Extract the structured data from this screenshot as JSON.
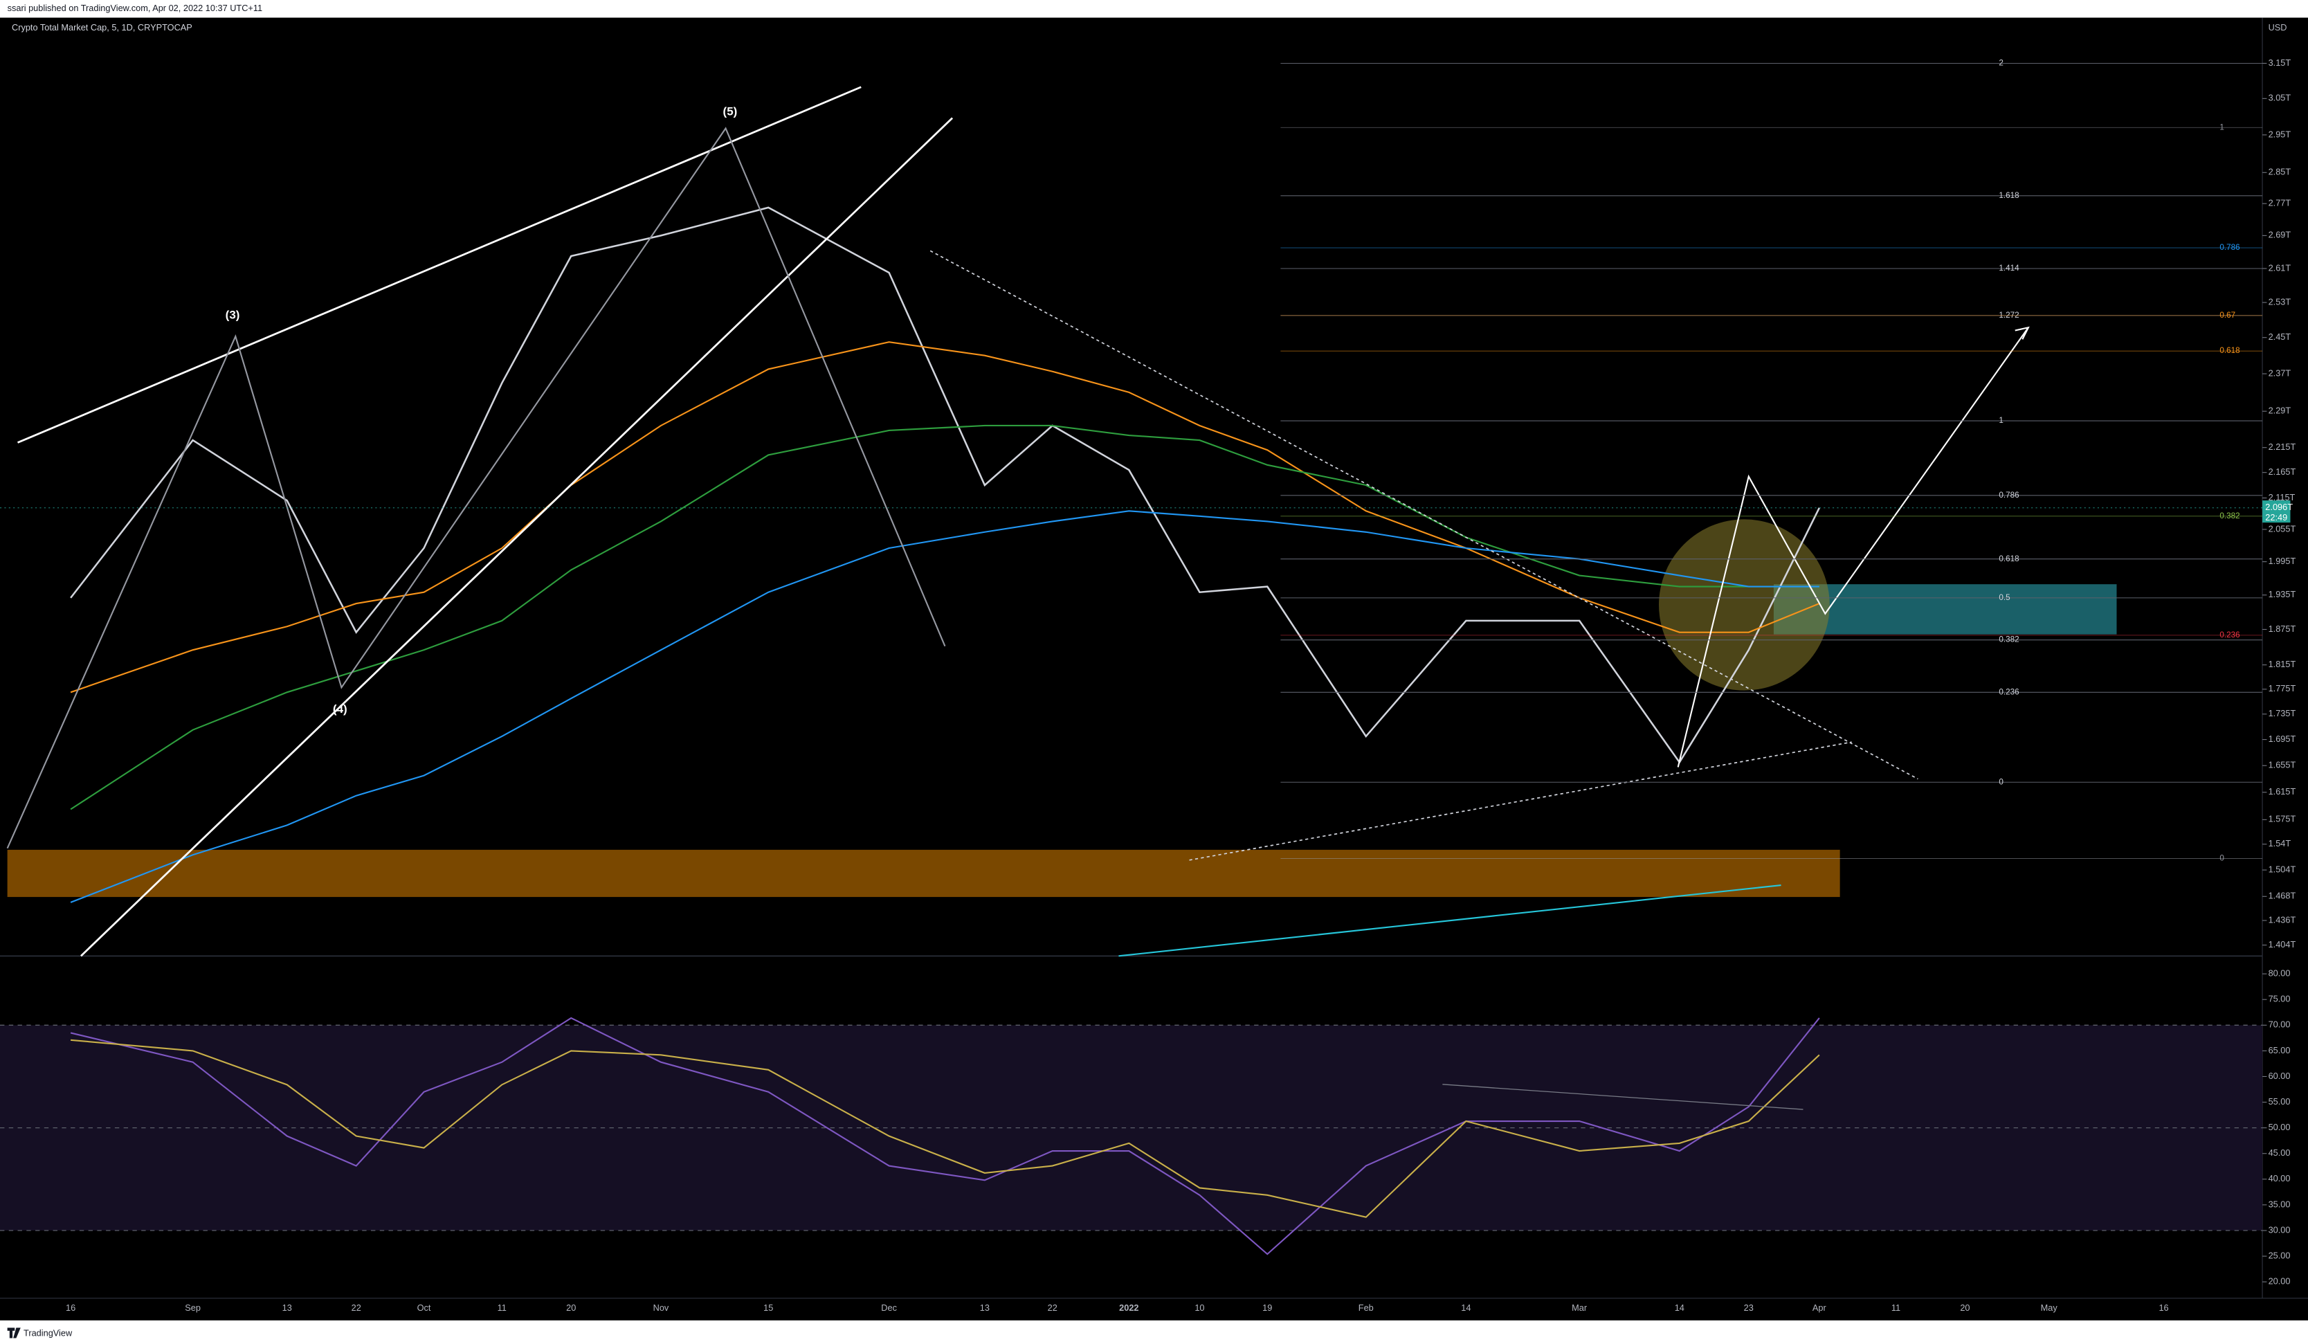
{
  "header": {
    "text": "ssari published on TradingView.com, Apr 02, 2022 10:37 UTC+11"
  },
  "footer": {
    "brand": "TradingView"
  },
  "chart_data": [
    {
      "type": "line",
      "title": "Crypto Total Market Cap, 5, 1D, CRYPTOCAP",
      "log_scale": true,
      "axis_label": "USD",
      "categories": [
        "16",
        "Sep",
        "13",
        "22",
        "Oct",
        "11",
        "20",
        "Nov",
        "15",
        "Dec",
        "13",
        "22",
        "2022",
        "10",
        "19",
        "Feb",
        "14",
        "Mar",
        "14",
        "23",
        "Apr",
        "11",
        "20",
        "May",
        "16"
      ],
      "ylim": [
        1.39,
        3.28
      ],
      "yticks": [
        {
          "value": 3.15,
          "label": "3.15T"
        },
        {
          "value": 3.05,
          "label": "3.05T"
        },
        {
          "value": 2.95,
          "label": "2.95T"
        },
        {
          "value": 2.85,
          "label": "2.85T"
        },
        {
          "value": 2.77,
          "label": "2.77T"
        },
        {
          "value": 2.69,
          "label": "2.69T"
        },
        {
          "value": 2.61,
          "label": "2.61T"
        },
        {
          "value": 2.53,
          "label": "2.53T"
        },
        {
          "value": 2.45,
          "label": "2.45T"
        },
        {
          "value": 2.37,
          "label": "2.37T"
        },
        {
          "value": 2.29,
          "label": "2.29T"
        },
        {
          "value": 2.215,
          "label": "2.215T"
        },
        {
          "value": 2.165,
          "label": "2.165T"
        },
        {
          "value": 2.115,
          "label": "2.115T"
        },
        {
          "value": 2.055,
          "label": "2.055T"
        },
        {
          "value": 1.995,
          "label": "1.995T"
        },
        {
          "value": 1.935,
          "label": "1.935T"
        },
        {
          "value": 1.875,
          "label": "1.875T"
        },
        {
          "value": 1.815,
          "label": "1.815T"
        },
        {
          "value": 1.775,
          "label": "1.775T"
        },
        {
          "value": 1.735,
          "label": "1.735T"
        },
        {
          "value": 1.695,
          "label": "1.695T"
        },
        {
          "value": 1.655,
          "label": "1.655T"
        },
        {
          "value": 1.615,
          "label": "1.615T"
        },
        {
          "value": 1.575,
          "label": "1.575T"
        },
        {
          "value": 1.54,
          "label": "1.54T"
        },
        {
          "value": 1.504,
          "label": "1.504T"
        },
        {
          "value": 1.468,
          "label": "1.468T"
        },
        {
          "value": 1.436,
          "label": "1.436T"
        },
        {
          "value": 1.404,
          "label": "1.404T"
        }
      ],
      "last_price": {
        "value": 2.096,
        "label": "2.096T",
        "color": "#26a69a"
      },
      "countdown": "22:49",
      "series": [
        {
          "color": "#d1d4dc",
          "values": [
            1.93,
            2.23,
            2.11,
            1.87,
            2.02,
            2.35,
            2.64,
            2.69,
            2.76,
            2.6,
            2.14,
            2.26,
            2.17,
            1.94,
            1.95,
            1.7,
            1.89,
            1.89,
            1.66,
            1.84,
            2.096,
            null,
            null,
            null,
            null
          ]
        },
        {
          "color": "#f7931a",
          "values": [
            1.77,
            1.84,
            1.88,
            1.92,
            1.94,
            2.02,
            2.14,
            2.26,
            2.38,
            2.44,
            2.41,
            2.375,
            2.33,
            2.26,
            2.21,
            2.09,
            2.02,
            1.93,
            1.87,
            1.87,
            1.92,
            null,
            null,
            null,
            null
          ]
        },
        {
          "color": "#2e9e3e",
          "values": [
            1.59,
            1.71,
            1.77,
            1.805,
            1.84,
            1.89,
            1.98,
            2.07,
            2.2,
            2.25,
            2.26,
            2.26,
            2.24,
            2.23,
            2.18,
            2.14,
            2.04,
            1.97,
            1.95,
            1.95,
            1.95,
            null,
            null,
            null,
            null
          ]
        },
        {
          "color": "#2196f3",
          "values": [
            1.46,
            1.525,
            1.567,
            1.61,
            1.64,
            1.7,
            1.76,
            1.84,
            1.94,
            2.02,
            2.05,
            2.07,
            2.09,
            2.08,
            2.07,
            2.05,
            2.02,
            2.0,
            1.97,
            1.95,
            1.95,
            null,
            null,
            null,
            null
          ]
        }
      ],
      "fib_levels": [
        {
          "label": "2",
          "value": 3.15
        },
        {
          "label": "1.618",
          "value": 2.79
        },
        {
          "label": "1.414",
          "value": 2.61
        },
        {
          "label": "1.272",
          "value": 2.5
        },
        {
          "label": "1",
          "value": 2.27
        },
        {
          "label": "0.786",
          "value": 2.12
        },
        {
          "label": "0.618",
          "value": 2.0
        },
        {
          "label": "0.5",
          "value": 1.93
        },
        {
          "label": "0.382",
          "value": 1.857
        },
        {
          "label": "0.236",
          "value": 1.77
        },
        {
          "label": "0",
          "value": 1.63
        }
      ],
      "fib_levels_alt": [
        {
          "label": "1",
          "value": 2.97,
          "color": "#9598a1"
        },
        {
          "label": "0.786",
          "value": 2.66,
          "color": "#2196f3"
        },
        {
          "label": "0.67",
          "value": 2.5,
          "color": "#f7931a"
        },
        {
          "label": "0.618",
          "value": 2.42,
          "color": "#f7931a"
        },
        {
          "label": "0.382",
          "value": 2.08,
          "color": "#8bc34a"
        },
        {
          "label": "0.236",
          "value": 1.865,
          "color": "#f23645"
        },
        {
          "label": "0",
          "value": 1.52,
          "color": "#9598a1"
        }
      ],
      "wave_labels": [
        "(3)",
        "(4)",
        "(5)"
      ]
    },
    {
      "type": "line",
      "ylim": [
        16.8,
        82.9
      ],
      "yticks": [
        {
          "value": 80,
          "label": "80.00"
        },
        {
          "value": 75,
          "label": "75.00"
        },
        {
          "value": 70,
          "label": "70.00"
        },
        {
          "value": 65,
          "label": "65.00"
        },
        {
          "value": 60,
          "label": "60.00"
        },
        {
          "value": 55,
          "label": "55.00"
        },
        {
          "value": 50,
          "label": "50.00"
        },
        {
          "value": 45,
          "label": "45.00"
        },
        {
          "value": 40,
          "label": "40.00"
        },
        {
          "value": 35,
          "label": "35.00"
        },
        {
          "value": 30,
          "label": "30.00"
        },
        {
          "value": 25,
          "label": "25.00"
        },
        {
          "value": 20,
          "label": "20.00"
        }
      ],
      "levels": [
        30,
        50,
        70
      ],
      "band_color": "#150f24",
      "series": [
        {
          "color": "#7e57c2",
          "values": [
            68.5,
            62.8,
            48.4,
            42.6,
            57,
            62.8,
            71.4,
            62.8,
            57,
            42.6,
            39.8,
            45.5,
            45.5,
            36.9,
            25.4,
            42.6,
            51.3,
            51.3,
            45.5,
            54.1,
            71.4,
            null,
            null,
            null,
            null
          ]
        },
        {
          "color": "#c9b04a",
          "values": [
            67.1,
            65,
            58.4,
            48.4,
            46.1,
            58.4,
            65,
            64.2,
            61.3,
            48.4,
            41.2,
            42.6,
            47,
            38.3,
            36.9,
            32.6,
            51.3,
            45.5,
            47,
            51.3,
            64.2,
            null,
            null,
            null,
            null
          ]
        }
      ]
    }
  ]
}
